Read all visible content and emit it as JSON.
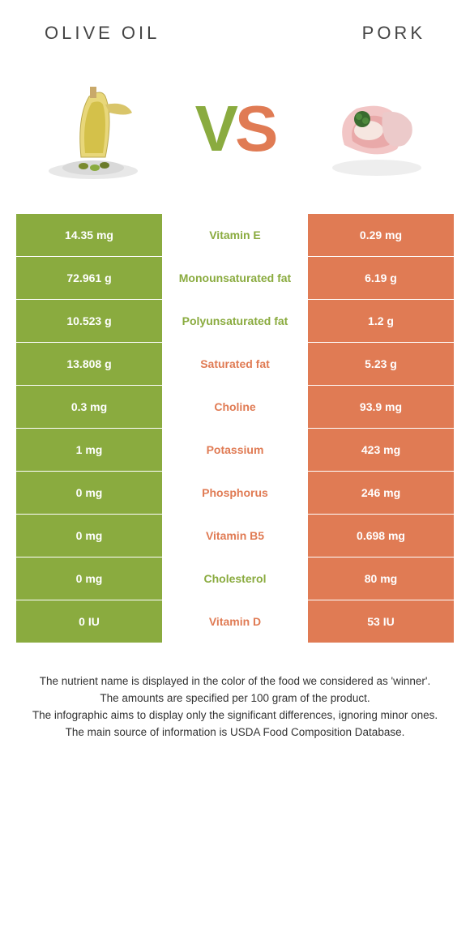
{
  "header": {
    "left": "OLIVE OIL",
    "right": "PORK"
  },
  "vs": {
    "v": "V",
    "s": "S"
  },
  "colors": {
    "left": "#8aab3f",
    "right": "#e07b54",
    "background": "#ffffff"
  },
  "rows": [
    {
      "left": "14.35 mg",
      "label": "Vitamin E",
      "winner": "left",
      "right": "0.29 mg"
    },
    {
      "left": "72.961 g",
      "label": "Monounsaturated fat",
      "winner": "left",
      "right": "6.19 g"
    },
    {
      "left": "10.523 g",
      "label": "Polyunsaturated fat",
      "winner": "left",
      "right": "1.2 g"
    },
    {
      "left": "13.808 g",
      "label": "Saturated fat",
      "winner": "right",
      "right": "5.23 g"
    },
    {
      "left": "0.3 mg",
      "label": "Choline",
      "winner": "right",
      "right": "93.9 mg"
    },
    {
      "left": "1 mg",
      "label": "Potassium",
      "winner": "right",
      "right": "423 mg"
    },
    {
      "left": "0 mg",
      "label": "Phosphorus",
      "winner": "right",
      "right": "246 mg"
    },
    {
      "left": "0 mg",
      "label": "Vitamin B5",
      "winner": "right",
      "right": "0.698 mg"
    },
    {
      "left": "0 mg",
      "label": "Cholesterol",
      "winner": "left",
      "right": "80 mg"
    },
    {
      "left": "0 IU",
      "label": "Vitamin D",
      "winner": "right",
      "right": "53 IU"
    }
  ],
  "notes": [
    "The nutrient name is displayed in the color of the food we considered as 'winner'.",
    "The amounts are specified per 100 gram of the product.",
    "The infographic aims to display only the significant differences, ignoring minor ones.",
    "The main source of information is USDA Food Composition Database."
  ]
}
